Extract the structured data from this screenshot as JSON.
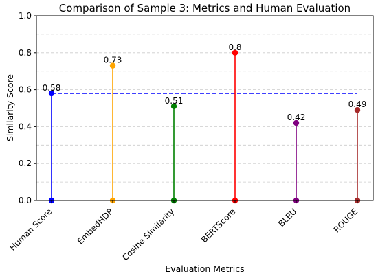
{
  "chart_data": {
    "type": "stem",
    "title": "Comparison of Sample 3: Metrics and Human Evaluation",
    "xlabel": "Evaluation Metrics",
    "ylabel": "Similarity Score",
    "ylim": [
      0,
      1.0
    ],
    "yticks": [
      "0.0",
      "0.2",
      "0.4",
      "0.6",
      "0.8",
      "1.0"
    ],
    "grid": true,
    "categories": [
      "Human Score",
      "EmbedHDP",
      "Cosine Similarity",
      "BERTScore",
      "BLEU",
      "ROUGE"
    ],
    "values": [
      0.58,
      0.73,
      0.51,
      0.8,
      0.42,
      0.49
    ],
    "data_labels": [
      "0.58",
      "0.73",
      "0.51",
      "0.8",
      "0.42",
      "0.49"
    ],
    "colors": [
      "#0000ff",
      "#ffa500",
      "#008000",
      "#ff0000",
      "#800080",
      "#a52a2a"
    ],
    "reference_line": {
      "value": 0.58,
      "color": "#0000ff",
      "style": "dashed"
    }
  }
}
